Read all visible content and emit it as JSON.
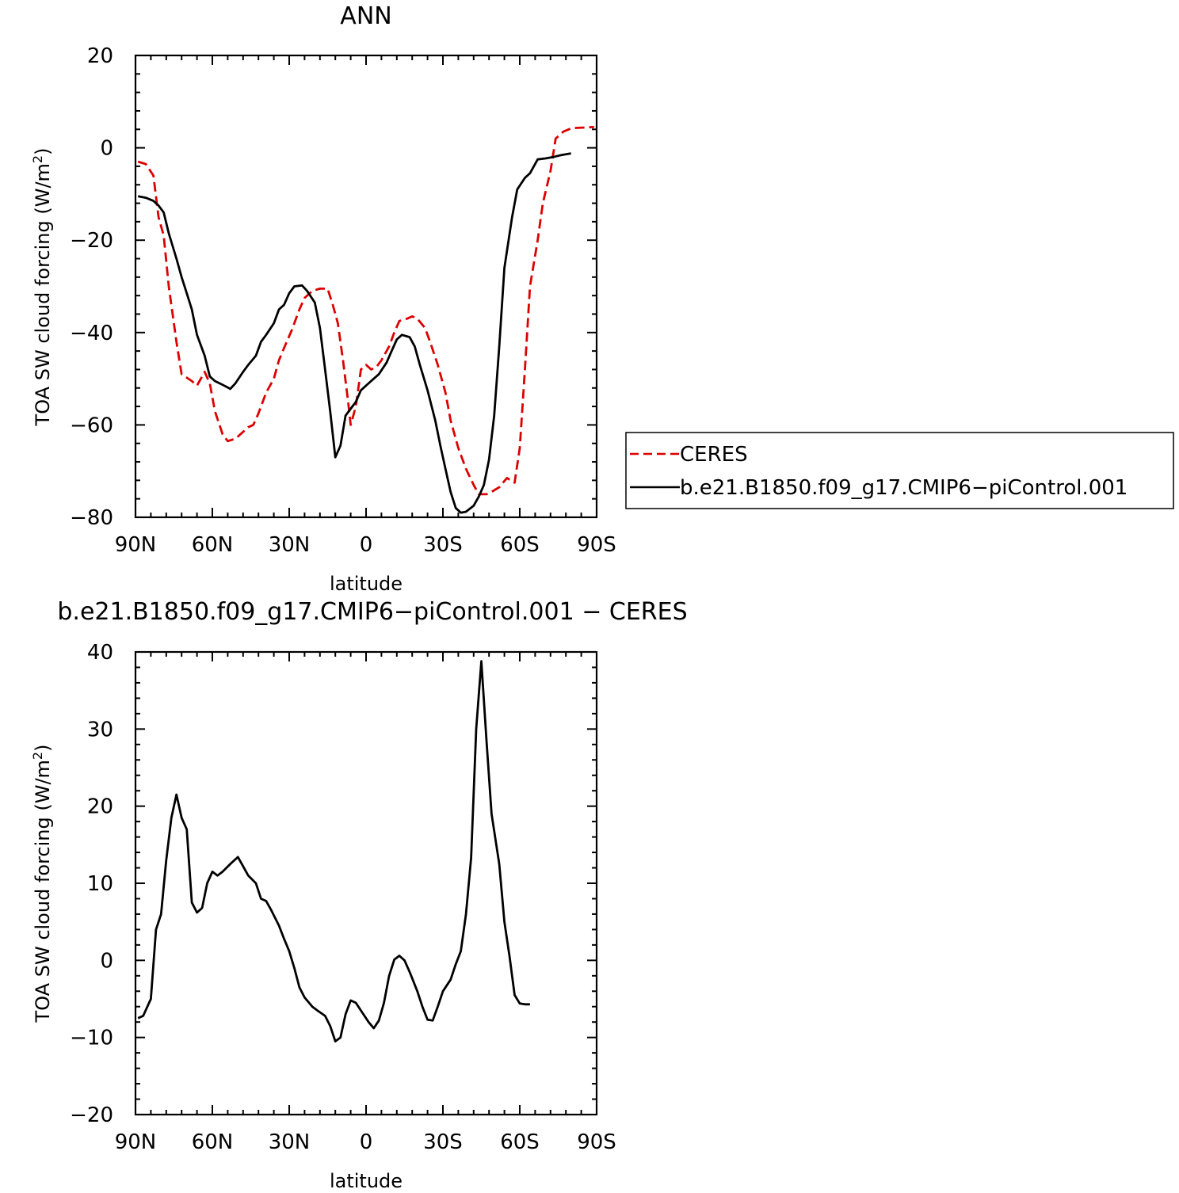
{
  "chart_data": [
    {
      "type": "line",
      "title": "ANN",
      "xlabel": "latitude",
      "ylabel": "TOA SW cloud forcing (W/m²)",
      "ylabel_base": "TOA SW cloud forcing (W/m",
      "ylabel_sup": "2",
      "ylabel_end": ")",
      "xlim": [
        90,
        -90
      ],
      "ylim": [
        -80,
        20
      ],
      "x_ticks": [
        {
          "value": 90,
          "label": "90N"
        },
        {
          "value": 60,
          "label": "60N"
        },
        {
          "value": 30,
          "label": "30N"
        },
        {
          "value": 0,
          "label": "0"
        },
        {
          "value": -30,
          "label": "30S"
        },
        {
          "value": -60,
          "label": "60S"
        },
        {
          "value": -90,
          "label": "90S"
        }
      ],
      "y_ticks": [
        {
          "value": 20,
          "label": "20"
        },
        {
          "value": 0,
          "label": "0"
        },
        {
          "value": -20,
          "label": "−20"
        },
        {
          "value": -40,
          "label": "−40"
        },
        {
          "value": -60,
          "label": "−60"
        },
        {
          "value": -80,
          "label": "−80"
        }
      ],
      "legend_position": "right",
      "series": [
        {
          "name": "CERES",
          "color": "#dd0000",
          "dash": true,
          "points": [
            [
              89,
              -3
            ],
            [
              86,
              -3.5
            ],
            [
              83,
              -6
            ],
            [
              81,
              -15
            ],
            [
              79,
              -19
            ],
            [
              77,
              -30
            ],
            [
              74,
              -42
            ],
            [
              72,
              -49
            ],
            [
              68,
              -50.5
            ],
            [
              66,
              -51.5
            ],
            [
              63,
              -48.5
            ],
            [
              61,
              -51
            ],
            [
              59,
              -57
            ],
            [
              56,
              -62
            ],
            [
              54,
              -63.5
            ],
            [
              51,
              -63
            ],
            [
              49,
              -62
            ],
            [
              46,
              -60.5
            ],
            [
              44,
              -60
            ],
            [
              42,
              -57.5
            ],
            [
              39,
              -53
            ],
            [
              36,
              -50
            ],
            [
              34,
              -46
            ],
            [
              31,
              -42
            ],
            [
              29,
              -39.5
            ],
            [
              26,
              -35
            ],
            [
              24,
              -32.5
            ],
            [
              21,
              -31
            ],
            [
              18,
              -30.5
            ],
            [
              15,
              -30.5
            ],
            [
              13,
              -34
            ],
            [
              11,
              -38
            ],
            [
              9,
              -46
            ],
            [
              7,
              -55
            ],
            [
              6,
              -60
            ],
            [
              4,
              -56
            ],
            [
              2,
              -48
            ],
            [
              0,
              -47
            ],
            [
              -2,
              -48
            ],
            [
              -4,
              -47.5
            ],
            [
              -6,
              -46
            ],
            [
              -9,
              -43
            ],
            [
              -11,
              -40
            ],
            [
              -13,
              -37.5
            ],
            [
              -16,
              -37
            ],
            [
              -18,
              -36.5
            ],
            [
              -20,
              -37
            ],
            [
              -23,
              -39
            ],
            [
              -25,
              -42
            ],
            [
              -28,
              -47
            ],
            [
              -31,
              -53
            ],
            [
              -33,
              -59
            ],
            [
              -36,
              -65
            ],
            [
              -39,
              -69.5
            ],
            [
              -42,
              -73
            ],
            [
              -44,
              -75
            ],
            [
              -47,
              -75
            ],
            [
              -49,
              -74.5
            ],
            [
              -52,
              -73.5
            ],
            [
              -55,
              -71.5
            ],
            [
              -58,
              -72.5
            ],
            [
              -60,
              -65
            ],
            [
              -62,
              -48
            ],
            [
              -64,
              -30
            ],
            [
              -67,
              -20
            ],
            [
              -69,
              -12
            ],
            [
              -72,
              -5
            ],
            [
              -74,
              2
            ],
            [
              -77,
              3.5
            ],
            [
              -80,
              4.2
            ],
            [
              -82,
              4.3
            ],
            [
              -89,
              4.5
            ]
          ]
        },
        {
          "name": "b.e21.B1850.f09_g17.CMIP6−piControl.001",
          "color": "#000000",
          "dash": false,
          "points": [
            [
              89,
              -10.5
            ],
            [
              86,
              -10.8
            ],
            [
              83,
              -11.5
            ],
            [
              81,
              -12.5
            ],
            [
              79,
              -14
            ],
            [
              77,
              -18.5
            ],
            [
              74,
              -24
            ],
            [
              72,
              -28
            ],
            [
              70,
              -31.5
            ],
            [
              68,
              -35
            ],
            [
              66,
              -40.5
            ],
            [
              63,
              -45
            ],
            [
              61,
              -49.5
            ],
            [
              59,
              -50.5
            ],
            [
              56,
              -51.3
            ],
            [
              53,
              -52.2
            ],
            [
              51,
              -51
            ],
            [
              48,
              -48.5
            ],
            [
              46,
              -47
            ],
            [
              43,
              -45
            ],
            [
              41,
              -42
            ],
            [
              39,
              -40.5
            ],
            [
              36,
              -38
            ],
            [
              34,
              -35
            ],
            [
              32,
              -34
            ],
            [
              30,
              -31.5
            ],
            [
              28,
              -30
            ],
            [
              25,
              -29.8
            ],
            [
              23,
              -31
            ],
            [
              20,
              -33.5
            ],
            [
              18,
              -39
            ],
            [
              16,
              -48
            ],
            [
              14,
              -57
            ],
            [
              12,
              -67
            ],
            [
              10,
              -64.5
            ],
            [
              8,
              -58
            ],
            [
              6,
              -56.5
            ],
            [
              4,
              -55
            ],
            [
              2,
              -52.5
            ],
            [
              -1,
              -51
            ],
            [
              -3,
              -50
            ],
            [
              -5,
              -49
            ],
            [
              -8,
              -46.5
            ],
            [
              -10,
              -44
            ],
            [
              -12,
              -41.5
            ],
            [
              -14,
              -40.5
            ],
            [
              -17,
              -41
            ],
            [
              -19,
              -43
            ],
            [
              -21,
              -47
            ],
            [
              -24,
              -52.5
            ],
            [
              -27,
              -59
            ],
            [
              -29,
              -64.5
            ],
            [
              -31,
              -69.5
            ],
            [
              -33,
              -74.5
            ],
            [
              -35,
              -78
            ],
            [
              -37,
              -79
            ],
            [
              -39,
              -78.8
            ],
            [
              -42,
              -77.5
            ],
            [
              -44,
              -75.5
            ],
            [
              -46,
              -73
            ],
            [
              -48,
              -67.5
            ],
            [
              -50,
              -58
            ],
            [
              -52,
              -43
            ],
            [
              -54,
              -26
            ],
            [
              -57,
              -15
            ],
            [
              -59,
              -9
            ],
            [
              -62,
              -6.5
            ],
            [
              -64,
              -5.5
            ],
            [
              -67,
              -2.5
            ],
            [
              -70,
              -2.3
            ],
            [
              -73,
              -2
            ],
            [
              -76,
              -1.6
            ],
            [
              -80,
              -1.2
            ]
          ]
        }
      ]
    },
    {
      "type": "line",
      "title": "b.e21.B1850.f09_g17.CMIP6−piControl.001  −  CERES",
      "xlabel": "latitude",
      "ylabel": "TOA SW cloud forcing (W/m²)",
      "ylabel_base": "TOA SW cloud forcing (W/m",
      "ylabel_sup": "2",
      "ylabel_end": ")",
      "xlim": [
        90,
        -90
      ],
      "ylim": [
        -20,
        40
      ],
      "x_ticks": [
        {
          "value": 90,
          "label": "90N"
        },
        {
          "value": 60,
          "label": "60N"
        },
        {
          "value": 30,
          "label": "30N"
        },
        {
          "value": 0,
          "label": "0"
        },
        {
          "value": -30,
          "label": "30S"
        },
        {
          "value": -60,
          "label": "60S"
        },
        {
          "value": -90,
          "label": "90S"
        }
      ],
      "y_ticks": [
        {
          "value": 40,
          "label": "40"
        },
        {
          "value": 30,
          "label": "30"
        },
        {
          "value": 20,
          "label": "20"
        },
        {
          "value": 10,
          "label": "10"
        },
        {
          "value": 0,
          "label": "0"
        },
        {
          "value": -10,
          "label": "−10"
        },
        {
          "value": -20,
          "label": "−20"
        }
      ],
      "series": [
        {
          "name": "",
          "color": "#000000",
          "dash": false,
          "points": [
            [
              89,
              -7.5
            ],
            [
              87,
              -7.2
            ],
            [
              84,
              -5
            ],
            [
              82,
              4
            ],
            [
              80,
              6
            ],
            [
              78,
              13
            ],
            [
              76,
              18.5
            ],
            [
              74,
              21.5
            ],
            [
              72,
              18.5
            ],
            [
              70,
              17
            ],
            [
              68,
              7.5
            ],
            [
              66,
              6.2
            ],
            [
              64,
              6.8
            ],
            [
              62,
              10
            ],
            [
              60,
              11.5
            ],
            [
              58,
              11
            ],
            [
              56,
              11.5
            ],
            [
              53,
              12.5
            ],
            [
              50,
              13.4
            ],
            [
              48,
              12.2
            ],
            [
              46,
              11
            ],
            [
              43,
              10
            ],
            [
              41,
              8
            ],
            [
              39,
              7.7
            ],
            [
              37,
              6.5
            ],
            [
              34,
              4.5
            ],
            [
              32,
              2.8
            ],
            [
              30,
              1.2
            ],
            [
              28,
              -1
            ],
            [
              26,
              -3.5
            ],
            [
              24,
              -4.8
            ],
            [
              21,
              -6
            ],
            [
              19,
              -6.5
            ],
            [
              16,
              -7.2
            ],
            [
              14,
              -8.5
            ],
            [
              12,
              -10.5
            ],
            [
              10,
              -10
            ],
            [
              8,
              -7
            ],
            [
              6,
              -5.2
            ],
            [
              4,
              -5.5
            ],
            [
              2,
              -6.5
            ],
            [
              -1,
              -8
            ],
            [
              -3,
              -8.8
            ],
            [
              -5,
              -7.8
            ],
            [
              -7,
              -5.5
            ],
            [
              -9,
              -2
            ],
            [
              -11,
              0.1
            ],
            [
              -13,
              0.6
            ],
            [
              -15,
              0
            ],
            [
              -17,
              -1.5
            ],
            [
              -20,
              -4
            ],
            [
              -22,
              -6
            ],
            [
              -24,
              -7.7
            ],
            [
              -26,
              -7.8
            ],
            [
              -28,
              -6
            ],
            [
              -30,
              -4
            ],
            [
              -33,
              -2.5
            ],
            [
              -35,
              -0.5
            ],
            [
              -37,
              1.2
            ],
            [
              -39,
              6
            ],
            [
              -41,
              13.3
            ],
            [
              -43,
              30
            ],
            [
              -45,
              38.8
            ],
            [
              -47,
              28.5
            ],
            [
              -49,
              19
            ],
            [
              -52,
              12.5
            ],
            [
              -54,
              5
            ],
            [
              -56,
              0.5
            ],
            [
              -58,
              -4.5
            ],
            [
              -60,
              -5.6
            ],
            [
              -62,
              -5.7
            ],
            [
              -64,
              -5.7
            ]
          ]
        }
      ]
    }
  ]
}
